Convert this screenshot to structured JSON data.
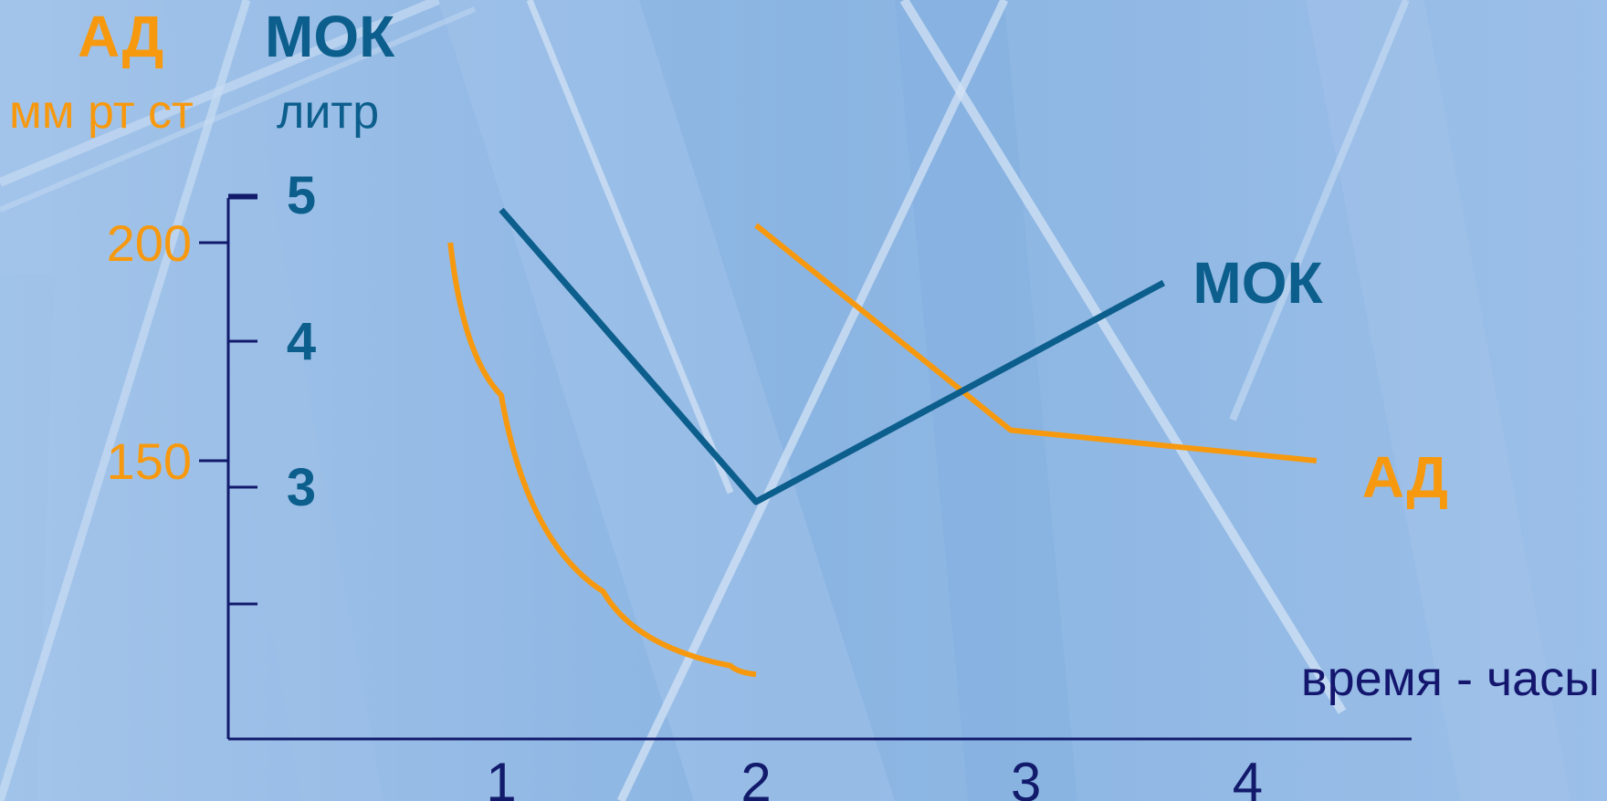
{
  "colors": {
    "background": "#8fb7e3",
    "ad": "#f7990f",
    "mok": "#0c5e8c",
    "axis": "#121a6b",
    "xlabel": "#14166e"
  },
  "chart_data": {
    "type": "line",
    "title": "",
    "xlabel": "время - часы",
    "x_ticks": [
      "1",
      "2",
      "3",
      "4"
    ],
    "x_range": [
      0,
      4.6
    ],
    "left_axis": {
      "name": "АД",
      "unit": "мм рт ст",
      "ticks": [
        "200",
        "150"
      ],
      "tick_values": [
        200,
        150
      ]
    },
    "right_axis": {
      "name": "МОК",
      "unit": "литр",
      "ticks": [
        "5",
        "4",
        "3"
      ],
      "tick_values": [
        5,
        4,
        3
      ]
    },
    "series": [
      {
        "name": "АД",
        "axis": "left",
        "points": [
          [
            0.8,
            200
          ],
          [
            1.0,
            165
          ],
          [
            1.4,
            120
          ],
          [
            1.9,
            103
          ],
          [
            2.0,
            101
          ]
        ]
      },
      {
        "name": "АД",
        "axis": "left",
        "points": [
          [
            2.0,
            204
          ],
          [
            3.0,
            157
          ],
          [
            4.2,
            150
          ]
        ]
      },
      {
        "name": "МОК",
        "axis": "right",
        "points": [
          [
            1.0,
            4.9
          ],
          [
            2.0,
            2.9
          ],
          [
            3.6,
            4.4
          ]
        ]
      }
    ]
  }
}
